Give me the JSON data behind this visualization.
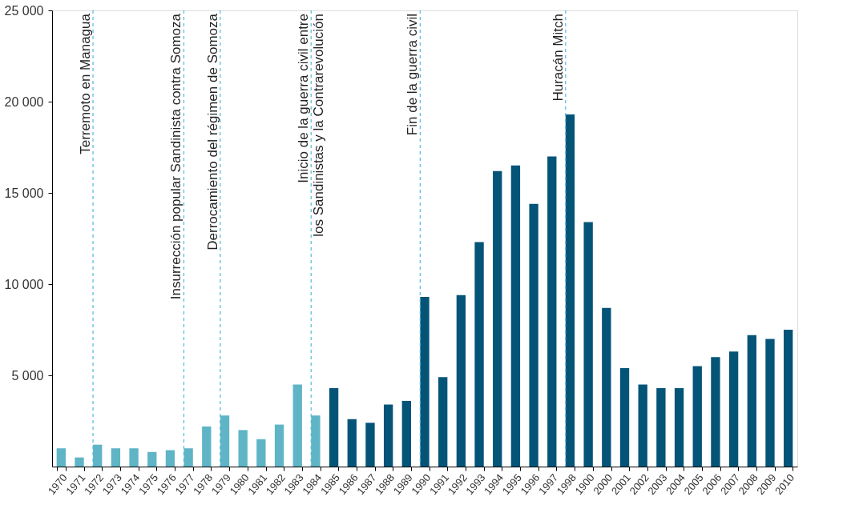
{
  "chart_data": {
    "type": "bar",
    "categories": [
      "1970",
      "1971",
      "1972",
      "1973",
      "1974",
      "1975",
      "1976",
      "1977",
      "1978",
      "1979",
      "1980",
      "1981",
      "1982",
      "1983",
      "1984",
      "1985",
      "1986",
      "1987",
      "1988",
      "1989",
      "1990",
      "1991",
      "1992",
      "1993",
      "1994",
      "1995",
      "1996",
      "1997",
      "1998",
      "1900",
      "2000",
      "2001",
      "2002",
      "2003",
      "2004",
      "2005",
      "2006",
      "2007",
      "2008",
      "2009",
      "2010"
    ],
    "values": [
      1000,
      500,
      1200,
      1000,
      1000,
      800,
      900,
      1000,
      2200,
      2800,
      2000,
      1500,
      2300,
      4500,
      2800,
      4300,
      2600,
      2400,
      3400,
      3600,
      9300,
      4900,
      9400,
      12300,
      16200,
      16500,
      14400,
      17000,
      19300,
      13400,
      8700,
      5400,
      4500,
      4300,
      4300,
      5500,
      6000,
      6300,
      7200,
      7000,
      7500
    ],
    "colors": [
      "#5fb4c6",
      "#5fb4c6",
      "#5fb4c6",
      "#5fb4c6",
      "#5fb4c6",
      "#5fb4c6",
      "#5fb4c6",
      "#5fb4c6",
      "#5fb4c6",
      "#5fb4c6",
      "#5fb4c6",
      "#5fb4c6",
      "#5fb4c6",
      "#5fb4c6",
      "#5fb4c6",
      "#045478",
      "#045478",
      "#045478",
      "#045478",
      "#045478",
      "#045478",
      "#045478",
      "#045478",
      "#045478",
      "#045478",
      "#045478",
      "#045478",
      "#045478",
      "#045478",
      "#045478",
      "#045478",
      "#045478",
      "#045478",
      "#045478",
      "#045478",
      "#045478",
      "#045478",
      "#045478",
      "#045478",
      "#045478",
      "#045478"
    ],
    "ylim": [
      0,
      25000
    ],
    "yticks": [
      {
        "value": 5000,
        "label": "5 000"
      },
      {
        "value": 10000,
        "label": "10 000"
      },
      {
        "value": 15000,
        "label": "15 000"
      },
      {
        "value": 20000,
        "label": "20 000"
      },
      {
        "value": 25000,
        "label": "25 000"
      }
    ],
    "grid": false,
    "ref_lines": [
      {
        "axis": "x",
        "value": "1972",
        "label": "Terremoto en Managua",
        "color": "#4fb8e0",
        "line_style": "dashed"
      },
      {
        "axis": "x",
        "value": "1977",
        "label": "Insurrección popular Sandinista contra Somoza",
        "color": "#4fb8e0",
        "line_style": "dashed"
      },
      {
        "axis": "x",
        "value": "1979",
        "label": "Derrocamiento del régimen de Somoza",
        "color": "#4fb8e0",
        "line_style": "dashed"
      },
      {
        "axis": "x",
        "value": "1984",
        "label": "Inicio de la guerra civil entre\nlos Sandinistas y la Contrarevolución",
        "color": "#4fb8e0",
        "line_style": "dashed"
      },
      {
        "axis": "x",
        "value": "1990",
        "label": "Fin de la guerra civil",
        "color": "#4fb8e0",
        "line_style": "dashed"
      },
      {
        "axis": "x",
        "value": "1998",
        "label": "Huracán Mitch",
        "color": "#4fb8e0",
        "line_style": "dashed"
      }
    ]
  }
}
